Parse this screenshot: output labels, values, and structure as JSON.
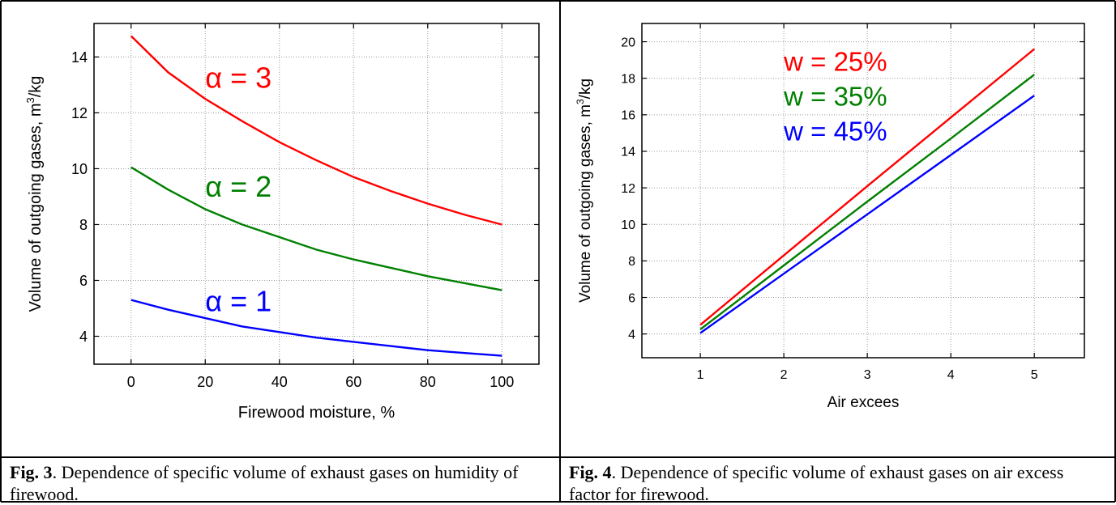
{
  "figures": [
    {
      "caption_label": "Fig. 3",
      "caption_text": ". Dependence of specific volume of exhaust gases on humidity of firewood."
    },
    {
      "caption_label": "Fig. 4",
      "caption_text": ". Dependence of specific volume of exhaust gases on air excess factor for firewood."
    }
  ],
  "chart_data": [
    {
      "type": "line",
      "xlabel": "Firewood moisture, %",
      "ylabel_main": "Volume of outgoing gases, m",
      "ylabel_sup": "3",
      "ylabel_unit": "/kg",
      "xlim": [
        -10,
        110
      ],
      "ylim": [
        3.0,
        15.2
      ],
      "xticks": [
        0,
        20,
        40,
        60,
        80,
        100
      ],
      "yticks": [
        4,
        6,
        8,
        10,
        12,
        14
      ],
      "grid": true,
      "series": [
        {
          "name": "α = 3",
          "color": "#ff0000",
          "x": [
            0,
            10,
            20,
            30,
            40,
            50,
            60,
            70,
            80,
            90,
            100
          ],
          "y": [
            14.75,
            13.45,
            12.5,
            11.7,
            10.95,
            10.3,
            9.7,
            9.2,
            8.75,
            8.35,
            8.0
          ],
          "label_pos": [
            20,
            12.9
          ]
        },
        {
          "name": "α = 2",
          "color": "#008000",
          "x": [
            0,
            10,
            20,
            30,
            40,
            50,
            60,
            70,
            80,
            90,
            100
          ],
          "y": [
            10.05,
            9.25,
            8.55,
            8.0,
            7.55,
            7.1,
            6.75,
            6.45,
            6.15,
            5.9,
            5.65
          ],
          "label_pos": [
            20,
            9.0
          ]
        },
        {
          "name": "α = 1",
          "color": "#0000ff",
          "x": [
            0,
            10,
            20,
            30,
            40,
            50,
            60,
            70,
            80,
            90,
            100
          ],
          "y": [
            5.3,
            4.95,
            4.65,
            4.35,
            4.15,
            3.95,
            3.8,
            3.65,
            3.5,
            3.4,
            3.3
          ],
          "label_pos": [
            20,
            4.9
          ]
        }
      ]
    },
    {
      "type": "line",
      "xlabel": "Air excees",
      "ylabel_main": "Volume of outgoing gases, m",
      "ylabel_sup": "3",
      "ylabel_unit": "/kg",
      "xlim": [
        0.3,
        5.6
      ],
      "ylim": [
        2.7,
        21.0
      ],
      "xticks": [
        1,
        2,
        3,
        4,
        5
      ],
      "yticks": [
        4,
        6,
        8,
        10,
        12,
        14,
        16,
        18,
        20
      ],
      "grid": true,
      "series": [
        {
          "name": "w = 25%",
          "color": "#ff0000",
          "x": [
            1,
            2,
            3,
            4,
            5
          ],
          "y": [
            4.5,
            8.3,
            12.1,
            15.85,
            19.6
          ],
          "label_pos": [
            2.0,
            18.4
          ]
        },
        {
          "name": "w = 35%",
          "color": "#008000",
          "x": [
            1,
            2,
            3,
            4,
            5
          ],
          "y": [
            4.25,
            7.75,
            11.25,
            14.7,
            18.2
          ],
          "label_pos": [
            2.0,
            16.5
          ]
        },
        {
          "name": "w = 45%",
          "color": "#0000ff",
          "x": [
            1,
            2,
            3,
            4,
            5
          ],
          "y": [
            4.05,
            7.3,
            10.55,
            13.8,
            17.05
          ],
          "label_pos": [
            2.0,
            14.6
          ]
        }
      ]
    }
  ]
}
